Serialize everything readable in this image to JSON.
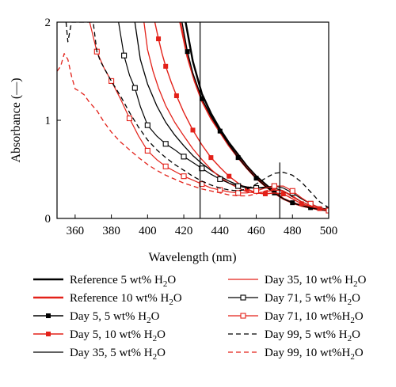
{
  "chart_data": {
    "type": "line",
    "xlabel": "Wavelength (nm)",
    "ylabel": "Absorbance (—)",
    "xlim": [
      350,
      500
    ],
    "ylim": [
      0,
      2
    ],
    "xticks": [
      360,
      380,
      400,
      420,
      440,
      460,
      480,
      500
    ],
    "yticks": [
      0,
      1,
      2
    ],
    "vertical_lines": [
      429,
      473
    ],
    "legend_position": "below",
    "series": [
      {
        "name": "Reference 5 wt% H2O",
        "color": "#000000",
        "style": "solid",
        "width": 2.4,
        "marker": "none",
        "x": [
          421,
          425,
          430,
          435,
          440,
          445,
          450,
          455,
          460,
          465,
          470,
          475,
          480,
          485,
          490,
          495,
          500
        ],
        "y": [
          2.0,
          1.6,
          1.27,
          1.07,
          0.91,
          0.77,
          0.65,
          0.53,
          0.43,
          0.35,
          0.27,
          0.2,
          0.16,
          0.13,
          0.11,
          0.09,
          0.08
        ]
      },
      {
        "name": "Reference 10 wt% H2O",
        "color": "#e32119",
        "style": "solid",
        "width": 2.4,
        "marker": "none",
        "x": [
          418,
          422,
          426,
          430,
          435,
          440,
          445,
          450,
          455,
          460,
          465,
          470,
          475,
          480,
          485,
          490,
          495,
          500
        ],
        "y": [
          2.0,
          1.65,
          1.4,
          1.2,
          1.02,
          0.88,
          0.74,
          0.62,
          0.51,
          0.41,
          0.33,
          0.26,
          0.2,
          0.16,
          0.13,
          0.11,
          0.09,
          0.08
        ]
      },
      {
        "name": "Day 5, 5 wt% H2O",
        "color": "#000000",
        "style": "solid",
        "width": 1.4,
        "marker": "filled-square",
        "x": [
          419,
          422,
          425,
          430,
          435,
          440,
          445,
          450,
          455,
          460,
          465,
          470,
          475,
          480,
          485,
          490,
          495,
          500
        ],
        "y": [
          2.0,
          1.7,
          1.48,
          1.22,
          1.04,
          0.89,
          0.75,
          0.62,
          0.51,
          0.41,
          0.33,
          0.26,
          0.2,
          0.16,
          0.13,
          0.11,
          0.09,
          0.08
        ]
      },
      {
        "name": "Day 5, 10 wt% H2O",
        "color": "#e32119",
        "style": "solid",
        "width": 1.4,
        "marker": "filled-square",
        "x": [
          404,
          406,
          408,
          410,
          413,
          416,
          420,
          425,
          430,
          435,
          440,
          445,
          450,
          455,
          460,
          465,
          470,
          475,
          480,
          485,
          490,
          495,
          500
        ],
        "y": [
          2.0,
          1.83,
          1.68,
          1.55,
          1.39,
          1.25,
          1.08,
          0.9,
          0.75,
          0.62,
          0.52,
          0.43,
          0.36,
          0.3,
          0.26,
          0.25,
          0.26,
          0.25,
          0.2,
          0.15,
          0.12,
          0.1,
          0.08
        ]
      },
      {
        "name": "Day 35, 5 wt% H2O",
        "color": "#000000",
        "style": "solid",
        "width": 1.3,
        "marker": "none",
        "x": [
          393,
          396,
          400,
          405,
          410,
          415,
          420,
          425,
          430,
          435,
          440,
          445,
          450,
          455,
          460,
          465,
          470,
          475,
          480,
          485,
          490,
          495,
          500
        ],
        "y": [
          2.0,
          1.62,
          1.37,
          1.15,
          0.98,
          0.85,
          0.74,
          0.64,
          0.56,
          0.49,
          0.43,
          0.38,
          0.34,
          0.32,
          0.31,
          0.31,
          0.31,
          0.28,
          0.22,
          0.17,
          0.13,
          0.1,
          0.08
        ]
      },
      {
        "name": "Day 35, 10 wt% H2O",
        "color": "#e32119",
        "style": "solid",
        "width": 1.3,
        "marker": "none",
        "x": [
          398,
          400,
          403,
          406,
          410,
          415,
          420,
          425,
          430,
          435,
          440,
          445,
          450,
          455,
          460,
          465,
          470,
          475,
          480,
          485,
          490,
          495,
          500
        ],
        "y": [
          2.0,
          1.72,
          1.5,
          1.33,
          1.15,
          0.98,
          0.84,
          0.71,
          0.6,
          0.5,
          0.42,
          0.36,
          0.31,
          0.27,
          0.26,
          0.27,
          0.29,
          0.28,
          0.23,
          0.17,
          0.13,
          0.1,
          0.08
        ]
      },
      {
        "name": "Day 71, 5 wt% H2O",
        "color": "#000000",
        "style": "solid",
        "width": 1.2,
        "marker": "open-square",
        "x": [
          384,
          387,
          390,
          393,
          396,
          400,
          405,
          410,
          415,
          420,
          425,
          430,
          435,
          440,
          445,
          450,
          455,
          460,
          465,
          470,
          475,
          480,
          485,
          490,
          495,
          500
        ],
        "y": [
          2.0,
          1.66,
          1.46,
          1.33,
          1.14,
          0.95,
          0.84,
          0.76,
          0.7,
          0.63,
          0.57,
          0.51,
          0.45,
          0.4,
          0.36,
          0.33,
          0.31,
          0.31,
          0.32,
          0.33,
          0.31,
          0.26,
          0.2,
          0.15,
          0.11,
          0.09
        ]
      },
      {
        "name": "Day 71, 10 wt%H2O",
        "color": "#e32119",
        "style": "solid",
        "width": 1.2,
        "marker": "open-square",
        "x": [
          368,
          372,
          376,
          380,
          385,
          390,
          395,
          400,
          405,
          410,
          415,
          420,
          425,
          430,
          435,
          440,
          445,
          450,
          455,
          460,
          465,
          470,
          475,
          480,
          485,
          490,
          495,
          500
        ],
        "y": [
          2.0,
          1.7,
          1.53,
          1.4,
          1.22,
          1.02,
          0.84,
          0.69,
          0.6,
          0.53,
          0.48,
          0.43,
          0.39,
          0.35,
          0.31,
          0.29,
          0.27,
          0.26,
          0.26,
          0.28,
          0.31,
          0.33,
          0.33,
          0.28,
          0.21,
          0.15,
          0.11,
          0.08
        ]
      },
      {
        "name": "Day 99, 5 wt% H2O",
        "color": "#000000",
        "style": "dashed",
        "width": 1.3,
        "marker": "none",
        "x": [
          355,
          356,
          357,
          358,
          359,
          365,
          370,
          372,
          374,
          377,
          380,
          385,
          390,
          395,
          400,
          405,
          410,
          415,
          420,
          425,
          430,
          435,
          440,
          445,
          450,
          455,
          460,
          465,
          470,
          475,
          480,
          485,
          490,
          495,
          500
        ],
        "y": [
          2.0,
          1.8,
          1.9,
          2.0,
          2.0,
          2.0,
          2.0,
          1.7,
          1.6,
          1.5,
          1.4,
          1.25,
          1.08,
          0.93,
          0.8,
          0.7,
          0.62,
          0.55,
          0.49,
          0.43,
          0.38,
          0.34,
          0.31,
          0.29,
          0.28,
          0.3,
          0.35,
          0.41,
          0.46,
          0.47,
          0.44,
          0.37,
          0.27,
          0.17,
          0.11
        ]
      },
      {
        "name": "Day 99, 10 wt%H2O",
        "color": "#e32119",
        "style": "dashed",
        "width": 1.3,
        "marker": "none",
        "x": [
          350,
          352,
          354,
          356,
          358,
          360,
          362,
          365,
          368,
          372,
          376,
          380,
          385,
          390,
          395,
          400,
          405,
          410,
          415,
          420,
          425,
          430,
          435,
          440,
          445,
          450,
          455,
          460,
          465,
          470,
          475,
          480,
          485,
          490,
          495,
          500
        ],
        "y": [
          1.5,
          1.55,
          1.68,
          1.62,
          1.45,
          1.32,
          1.3,
          1.26,
          1.18,
          1.1,
          0.98,
          0.88,
          0.78,
          0.7,
          0.62,
          0.55,
          0.49,
          0.44,
          0.4,
          0.36,
          0.33,
          0.3,
          0.28,
          0.26,
          0.24,
          0.23,
          0.23,
          0.25,
          0.28,
          0.3,
          0.28,
          0.22,
          0.17,
          0.13,
          0.1,
          0.08
        ]
      }
    ]
  },
  "legend": {
    "left": [
      {
        "prefix": "Reference 5 wt% H",
        "sub": "2",
        "suffix": "O"
      },
      {
        "prefix": "Reference 10 wt% H",
        "sub": "2",
        "suffix": "O"
      },
      {
        "prefix": "Day 5, 5 wt% H",
        "sub": "2",
        "suffix": "O"
      },
      {
        "prefix": "Day 5, 10 wt% H",
        "sub": "2",
        "suffix": "O"
      },
      {
        "prefix": "Day 35, 5 wt% H",
        "sub": "2",
        "suffix": "O"
      }
    ],
    "right": [
      {
        "prefix": "Day 35, 10 wt% H",
        "sub": "2",
        "suffix": "O"
      },
      {
        "prefix": "Day 71, 5 wt% H",
        "sub": "2",
        "suffix": "O"
      },
      {
        "prefix": "Day 71, 10 wt%H",
        "sub": "2",
        "suffix": "O"
      },
      {
        "prefix": "Day 99, 5 wt% H",
        "sub": "2",
        "suffix": "O"
      },
      {
        "prefix": "Day 99, 10 wt%H",
        "sub": "2",
        "suffix": "O"
      }
    ]
  }
}
